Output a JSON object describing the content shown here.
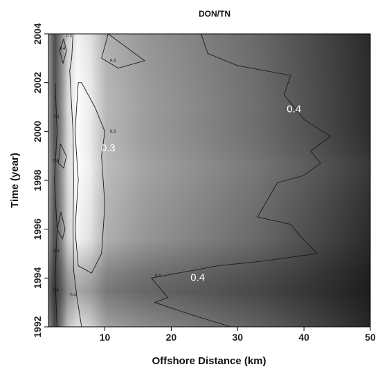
{
  "chart_data": {
    "type": "heatmap",
    "title": "DON/TN",
    "xlabel": "Offshore Distance (km)",
    "ylabel": "Time (year)",
    "xlim": [
      1.5,
      50
    ],
    "ylim": [
      1992,
      2004
    ],
    "x_ticks": [
      "10",
      "20",
      "30",
      "40",
      "50"
    ],
    "x_tick_values": [
      10,
      20,
      30,
      40,
      50
    ],
    "y_ticks": [
      "1992",
      "1994",
      "1996",
      "1998",
      "2000",
      "2002",
      "2004"
    ],
    "y_tick_values": [
      1992,
      1994,
      1996,
      1998,
      2000,
      2002,
      2004
    ],
    "colormap": "grayscale, white = low, black = high",
    "grid": false,
    "contour_levels": [
      0.3,
      0.4
    ],
    "contours": [
      {
        "level": 0.4,
        "points": [
          [
            24.5,
            2004
          ],
          [
            25.5,
            2003.2
          ],
          [
            30,
            2002.7
          ],
          [
            38,
            2002.3
          ],
          [
            37,
            2001.5
          ],
          [
            40,
            2000.5
          ],
          [
            44,
            1999.8
          ],
          [
            41,
            1999.2
          ],
          [
            42.5,
            1998.7
          ],
          [
            40,
            1998.2
          ],
          [
            36,
            1997.9
          ],
          [
            33,
            1996.5
          ],
          [
            38,
            1996.2
          ],
          [
            39.5,
            1995.7
          ],
          [
            42,
            1995
          ],
          [
            34,
            1994.7
          ],
          [
            27,
            1994.5
          ],
          [
            17,
            1994
          ],
          [
            19.5,
            1993.2
          ],
          [
            17.5,
            1993
          ],
          [
            23,
            1992.5
          ],
          [
            29,
            1992
          ]
        ]
      },
      {
        "level": 0.4,
        "points": [
          [
            10.5,
            2004
          ],
          [
            9.5,
            2003
          ],
          [
            12,
            2002.6
          ],
          [
            16,
            2002.9
          ],
          [
            10.5,
            2004
          ]
        ]
      },
      {
        "level": 0.3,
        "points": [
          [
            6.5,
            2002
          ],
          [
            8.5,
            2001
          ],
          [
            10,
            2000
          ],
          [
            9.5,
            1999
          ],
          [
            10,
            1997
          ],
          [
            9.5,
            1995
          ],
          [
            8,
            1994.2
          ],
          [
            6,
            1994.5
          ],
          [
            5.5,
            1996
          ],
          [
            6,
            1998
          ],
          [
            5.5,
            2000
          ],
          [
            6,
            2002
          ],
          [
            6.5,
            2002
          ]
        ]
      },
      {
        "level": 0.4,
        "points": [
          [
            5.2,
            2004
          ],
          [
            5,
            2003
          ],
          [
            4.7,
            2002.5
          ],
          [
            4.9,
            2001.5
          ],
          [
            5.2,
            2000
          ],
          [
            5.3,
            1998
          ],
          [
            5.2,
            1996
          ],
          [
            5.3,
            1994.3
          ],
          [
            5.8,
            1993.2
          ],
          [
            6.5,
            1992
          ]
        ]
      },
      {
        "level": 0.4,
        "points": [
          [
            3.8,
            2003.8
          ],
          [
            4.2,
            2003.3
          ],
          [
            3.7,
            2002.8
          ],
          [
            3.2,
            2003.3
          ],
          [
            3.8,
            2003.8
          ]
        ]
      },
      {
        "level": 0.4,
        "points": [
          [
            3.3,
            1999.5
          ],
          [
            4.2,
            1999
          ],
          [
            3.8,
            1998.5
          ],
          [
            3,
            1998.7
          ],
          [
            3.3,
            1999.5
          ]
        ]
      },
      {
        "level": 0.4,
        "points": [
          [
            3.4,
            1996.7
          ],
          [
            4,
            1996
          ],
          [
            3.6,
            1995.6
          ],
          [
            2.8,
            1996
          ],
          [
            3.4,
            1996.7
          ]
        ]
      },
      {
        "level": 0.4,
        "points": [
          [
            2.5,
            2002
          ],
          [
            2.8,
            2000
          ],
          [
            2.4,
            1998
          ],
          [
            2.8,
            1996
          ],
          [
            2.5,
            1994
          ],
          [
            2.8,
            1992
          ]
        ]
      }
    ],
    "annotations": [
      {
        "text": "0.4",
        "x": 38.5,
        "y": 2000.9,
        "size": "large"
      },
      {
        "text": "0.3",
        "x": 10.5,
        "y": 1999.3,
        "size": "large"
      },
      {
        "text": "0.4",
        "x": 24,
        "y": 1994,
        "size": "large"
      },
      {
        "text": "0.4",
        "x": 11.2,
        "y": 2002.9,
        "size": "small"
      },
      {
        "text": "0.4",
        "x": 18,
        "y": 1994.1,
        "size": "small"
      },
      {
        "text": "0.3",
        "x": 11.2,
        "y": 2000,
        "size": "small"
      },
      {
        "text": "0.4",
        "x": 3.6,
        "y": 2003.4,
        "size": "small"
      },
      {
        "text": "0.3",
        "x": 4.6,
        "y": 2003.9,
        "size": "small"
      },
      {
        "text": "0.4",
        "x": 2.7,
        "y": 2000.6,
        "size": "small"
      },
      {
        "text": "0.4",
        "x": 2.6,
        "y": 1998.8,
        "size": "small"
      },
      {
        "text": "0.4",
        "x": 2.7,
        "y": 1995.1,
        "size": "small"
      },
      {
        "text": "0.4",
        "x": 2.6,
        "y": 1993.5,
        "size": "small"
      },
      {
        "text": "0.4",
        "x": 5.2,
        "y": 1993.3,
        "size": "small"
      }
    ]
  }
}
